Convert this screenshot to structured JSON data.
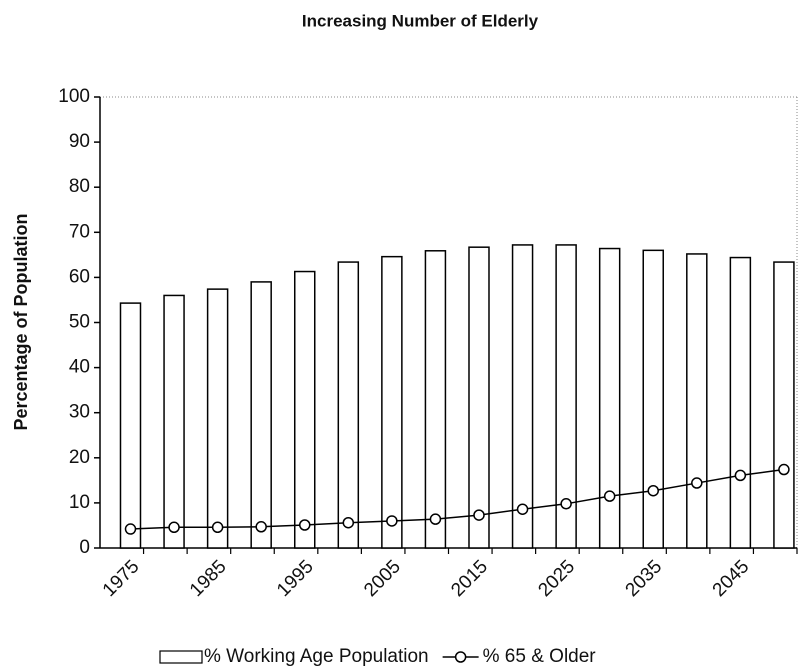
{
  "chart_data": {
    "type": "bar",
    "title": "Increasing Number of Elderly",
    "y_label": "Percentage of Population",
    "categories": [
      "1975",
      null,
      "1985",
      null,
      "1995",
      null,
      "2005",
      null,
      "2015",
      null,
      "2025",
      null,
      "2035",
      null,
      "2045",
      null
    ],
    "series": [
      {
        "name": "% Working Age Population",
        "type": "bar",
        "color": "#ffffff",
        "values": [
          54.3,
          56,
          57.4,
          59,
          61.3,
          63.4,
          64.6,
          65.9,
          66.7,
          67.2,
          67.2,
          66.4,
          66,
          65.2,
          64.4,
          63.4
        ]
      },
      {
        "name": "% 65 & Older",
        "type": "line",
        "color": "#000000",
        "values": [
          4.2,
          4.6,
          4.6,
          4.7,
          5.1,
          5.6,
          6,
          6.4,
          7.3,
          8.6,
          9.8,
          11.5,
          12.7,
          14.4,
          16.1,
          17.4
        ]
      }
    ],
    "ylim": [
      0,
      100
    ],
    "yticks": [
      0,
      10,
      20,
      30,
      40,
      50,
      60,
      70,
      80,
      90,
      100
    ],
    "grid": false,
    "legend": "bottom"
  }
}
